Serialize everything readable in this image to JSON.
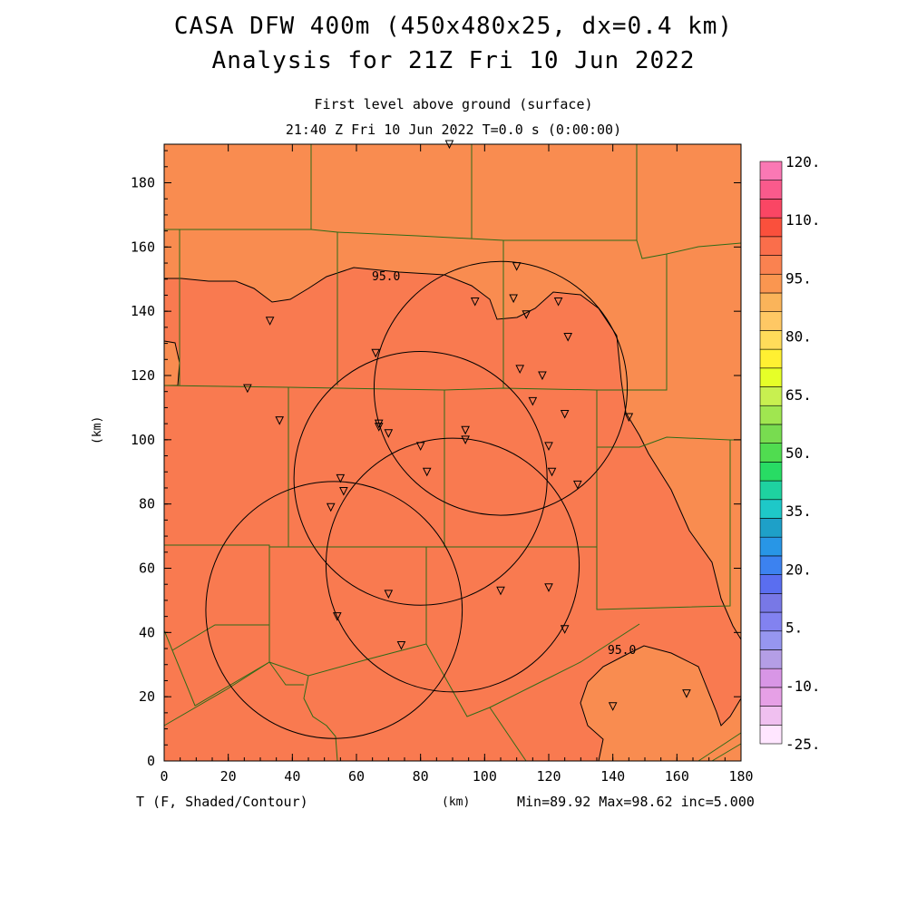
{
  "header": {
    "title_line1": "CASA DFW 400m (450x480x25, dx=0.4 km)",
    "title_line2": "Analysis for 21Z Fri 10 Jun 2022",
    "subtitle_level": "First level above ground (surface)",
    "subtitle_time": "21:40 Z Fri 10 Jun 2022   T=0.0 s (0:00:00)"
  },
  "axes": {
    "x_label": "(km)",
    "y_label": "(km)",
    "x_range": [
      0,
      180
    ],
    "y_range": [
      0,
      192
    ],
    "x_ticks": [
      "0",
      "20",
      "40",
      "60",
      "80",
      "100",
      "120",
      "140",
      "160",
      "180"
    ],
    "y_ticks": [
      "0",
      "20",
      "40",
      "60",
      "80",
      "100",
      "120",
      "140",
      "160",
      "180"
    ]
  },
  "footer": {
    "variable": "T (F, Shaded/Contour)",
    "stats": "Min=89.92 Max=98.62 inc=5.000"
  },
  "contour_label": "95.0",
  "colorbar": {
    "labels": [
      "120.",
      "110.",
      "95.",
      "80.",
      "65.",
      "50.",
      "35.",
      "20.",
      "5.",
      "-10.",
      "-25."
    ],
    "colors": [
      "#ffe6ff",
      "#f0c0f0",
      "#e6a0e6",
      "#d896e6",
      "#b49ee6",
      "#9696f0",
      "#8282f0",
      "#7878e6",
      "#5a6ef0",
      "#3c82f0",
      "#2896e6",
      "#1ea0c8",
      "#1ec8c8",
      "#1ed2a0",
      "#28dc64",
      "#50dc50",
      "#78dc50",
      "#a0e650",
      "#c8f050",
      "#e6ff28",
      "#fff032",
      "#ffdc5a",
      "#ffc864",
      "#fab45a",
      "#fa9650",
      "#fa8250",
      "#fa6e4b",
      "#fa503c",
      "#fa4664",
      "#fa5a8c",
      "#fa78b4"
    ],
    "fill_warm": "#f98c50",
    "fill_hot": "#f97a50"
  },
  "radar_rings": [
    {
      "name": "north-east",
      "center_km": [
        105,
        116
      ],
      "radius_km": 39.5
    },
    {
      "name": "central",
      "center_km": [
        80,
        88
      ],
      "radius_km": 39.5
    },
    {
      "name": "south-east",
      "center_km": [
        90,
        61
      ],
      "radius_km": 39.5
    },
    {
      "name": "south-west",
      "center_km": [
        53,
        47
      ],
      "radius_km": 40
    }
  ],
  "stations_km": [
    [
      89,
      192
    ],
    [
      110,
      154
    ],
    [
      109,
      144
    ],
    [
      97,
      143
    ],
    [
      113,
      139
    ],
    [
      123,
      143
    ],
    [
      126,
      132
    ],
    [
      33,
      137
    ],
    [
      66,
      127
    ],
    [
      111,
      122
    ],
    [
      118,
      120
    ],
    [
      26,
      116
    ],
    [
      36,
      106
    ],
    [
      67,
      105
    ],
    [
      67,
      104
    ],
    [
      70,
      102
    ],
    [
      94,
      103
    ],
    [
      94,
      100
    ],
    [
      115,
      112
    ],
    [
      125,
      108
    ],
    [
      145,
      107
    ],
    [
      80,
      98
    ],
    [
      120,
      98
    ],
    [
      82,
      90
    ],
    [
      121,
      90
    ],
    [
      129,
      86
    ],
    [
      55,
      88
    ],
    [
      56,
      84
    ],
    [
      52,
      79
    ],
    [
      70,
      52
    ],
    [
      105,
      53
    ],
    [
      120,
      54
    ],
    [
      54,
      45
    ],
    [
      125,
      41
    ],
    [
      74,
      36
    ],
    [
      140,
      17
    ],
    [
      163,
      21
    ]
  ]
}
